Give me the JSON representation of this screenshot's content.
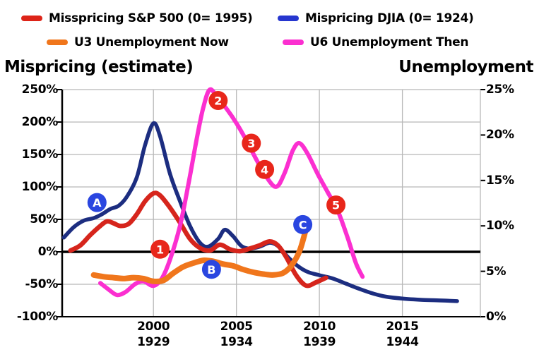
{
  "legend": {
    "items": [
      {
        "id": "sp500",
        "label": "Misspricing S&P 500 (0= 1995)",
        "color": "#dd2418"
      },
      {
        "id": "djia",
        "label": "Mispricing DJIA (0= 1924)",
        "color": "#2636cf"
      },
      {
        "id": "u3now",
        "label": "U3 Unemployment Now",
        "color": "#f0761c"
      },
      {
        "id": "u6then",
        "label": "U6 Unemployment Then",
        "color": "#fb2fd0"
      }
    ]
  },
  "titles": {
    "left_axis_title": "Mispricing (estimate)",
    "right_axis_title": "Unemployment"
  },
  "chart_data": {
    "type": "line",
    "title": "Mispricing (estimate) vs Unemployment",
    "grid": true,
    "grid_color": "#b8b8b8",
    "x_range": [
      1994.5,
      2019.7
    ],
    "left_axis": {
      "title": "Mispricing (estimate)",
      "range": [
        -100,
        250
      ],
      "ticks": [
        {
          "v": 250,
          "label": "250%"
        },
        {
          "v": 200,
          "label": "200%"
        },
        {
          "v": 150,
          "label": "150%"
        },
        {
          "v": 100,
          "label": "100%"
        },
        {
          "v": 50,
          "label": "50%"
        },
        {
          "v": 0,
          "label": "0%"
        },
        {
          "v": -50,
          "label": "-50%"
        },
        {
          "v": -100,
          "label": "-100%"
        }
      ]
    },
    "right_axis": {
      "title": "Unemployment",
      "range": [
        0,
        25
      ],
      "ticks": [
        {
          "v": 25,
          "label": "25%"
        },
        {
          "v": 20,
          "label": "20%"
        },
        {
          "v": 15,
          "label": "15%"
        },
        {
          "v": 10,
          "label": "10%"
        },
        {
          "v": 5,
          "label": "5%"
        },
        {
          "v": 0,
          "label": "0%"
        }
      ]
    },
    "x_axis": {
      "ticks": [
        {
          "year": 2000,
          "label_now": "2000",
          "label_then": "1929"
        },
        {
          "year": 2005,
          "label_now": "2005",
          "label_then": "1934"
        },
        {
          "year": 2010,
          "label_now": "2010",
          "label_then": "1939"
        },
        {
          "year": 2015,
          "label_now": "2015",
          "label_then": "1944"
        }
      ]
    },
    "series": [
      {
        "id": "djia",
        "name": "Mispricing DJIA (0= 1924)",
        "axis": "left",
        "color": "#1c2d80",
        "stroke_width": 5.5,
        "points": [
          [
            1994.6,
            22
          ],
          [
            1995.2,
            38
          ],
          [
            1995.8,
            48
          ],
          [
            1996.4,
            52
          ],
          [
            1996.9,
            58
          ],
          [
            1997.4,
            66
          ],
          [
            1997.9,
            71
          ],
          [
            1998.4,
            85
          ],
          [
            1999.0,
            115
          ],
          [
            1999.5,
            165
          ],
          [
            2000.0,
            198
          ],
          [
            2000.4,
            178
          ],
          [
            2001.0,
            120
          ],
          [
            2001.6,
            78
          ],
          [
            2002.2,
            40
          ],
          [
            2002.8,
            14
          ],
          [
            2003.3,
            8
          ],
          [
            2003.9,
            20
          ],
          [
            2004.3,
            34
          ],
          [
            2004.8,
            24
          ],
          [
            2005.3,
            9
          ],
          [
            2005.8,
            5
          ],
          [
            2006.4,
            8
          ],
          [
            2007.0,
            14
          ],
          [
            2007.5,
            9
          ],
          [
            2008.1,
            -8
          ],
          [
            2008.7,
            -22
          ],
          [
            2009.3,
            -31
          ],
          [
            2010.0,
            -36
          ],
          [
            2010.8,
            -41
          ],
          [
            2011.6,
            -49
          ],
          [
            2012.4,
            -57
          ],
          [
            2013.2,
            -64
          ],
          [
            2014.0,
            -69
          ],
          [
            2015.0,
            -72
          ],
          [
            2016.2,
            -74
          ],
          [
            2017.4,
            -75
          ],
          [
            2018.3,
            -76
          ]
        ]
      },
      {
        "id": "sp500",
        "name": "Misspricing S&P 500 (0= 1995)",
        "axis": "left",
        "color": "#d6251c",
        "stroke_width": 6.5,
        "points": [
          [
            1995.0,
            2
          ],
          [
            1995.6,
            10
          ],
          [
            1996.2,
            26
          ],
          [
            1996.8,
            40
          ],
          [
            1997.2,
            47
          ],
          [
            1997.6,
            44
          ],
          [
            1998.0,
            40
          ],
          [
            1998.5,
            43
          ],
          [
            1999.0,
            58
          ],
          [
            1999.5,
            78
          ],
          [
            2000.0,
            90
          ],
          [
            2000.4,
            87
          ],
          [
            2001.0,
            68
          ],
          [
            2001.6,
            45
          ],
          [
            2002.2,
            20
          ],
          [
            2002.8,
            6
          ],
          [
            2003.4,
            2
          ],
          [
            2004.0,
            11
          ],
          [
            2004.6,
            4
          ],
          [
            2005.2,
            1
          ],
          [
            2005.8,
            5
          ],
          [
            2006.4,
            10
          ],
          [
            2007.0,
            16
          ],
          [
            2007.5,
            10
          ],
          [
            2008.0,
            -8
          ],
          [
            2008.6,
            -36
          ],
          [
            2009.2,
            -52
          ],
          [
            2009.8,
            -47
          ],
          [
            2010.4,
            -40
          ]
        ]
      },
      {
        "id": "u6then",
        "name": "U6 Unemployment Then",
        "axis": "right",
        "color": "#fb2fd0",
        "stroke_width": 6,
        "points": [
          [
            1996.8,
            3.7
          ],
          [
            1997.3,
            3.0
          ],
          [
            1997.8,
            2.4
          ],
          [
            1998.3,
            2.7
          ],
          [
            1998.9,
            3.6
          ],
          [
            1999.4,
            3.9
          ],
          [
            2000.0,
            3.4
          ],
          [
            2000.5,
            4.2
          ],
          [
            2001.0,
            6.3
          ],
          [
            2001.6,
            10.0
          ],
          [
            2002.1,
            14.5
          ],
          [
            2002.6,
            19.5
          ],
          [
            2003.0,
            23.0
          ],
          [
            2003.4,
            25.0
          ],
          [
            2003.9,
            24.0
          ],
          [
            2004.4,
            22.9
          ],
          [
            2005.0,
            21.3
          ],
          [
            2005.6,
            19.4
          ],
          [
            2006.2,
            17.3
          ],
          [
            2006.8,
            15.4
          ],
          [
            2007.4,
            14.3
          ],
          [
            2007.9,
            15.8
          ],
          [
            2008.4,
            18.3
          ],
          [
            2008.8,
            19.1
          ],
          [
            2009.3,
            17.9
          ],
          [
            2009.9,
            15.7
          ],
          [
            2010.5,
            13.7
          ],
          [
            2011.1,
            11.7
          ],
          [
            2011.7,
            8.7
          ],
          [
            2012.2,
            5.9
          ],
          [
            2012.6,
            4.4
          ]
        ]
      },
      {
        "id": "u3now",
        "name": "U3 Unemployment Now",
        "axis": "right",
        "color": "#f0761c",
        "stroke_width": 8,
        "points": [
          [
            1996.4,
            4.6
          ],
          [
            1997.0,
            4.4
          ],
          [
            1997.6,
            4.3
          ],
          [
            1998.2,
            4.2
          ],
          [
            1998.8,
            4.3
          ],
          [
            1999.4,
            4.2
          ],
          [
            2000.0,
            3.9
          ],
          [
            2000.6,
            4.0
          ],
          [
            2001.2,
            4.8
          ],
          [
            2001.8,
            5.5
          ],
          [
            2002.4,
            5.9
          ],
          [
            2003.0,
            6.2
          ],
          [
            2003.6,
            6.1
          ],
          [
            2004.2,
            5.8
          ],
          [
            2004.8,
            5.6
          ],
          [
            2005.4,
            5.2
          ],
          [
            2006.0,
            4.9
          ],
          [
            2006.6,
            4.7
          ],
          [
            2007.2,
            4.6
          ],
          [
            2007.8,
            4.8
          ],
          [
            2008.3,
            5.6
          ],
          [
            2008.8,
            7.2
          ],
          [
            2009.2,
            9.7
          ]
        ]
      }
    ],
    "annotations": [
      {
        "label": "A",
        "x": 1996.6,
        "y": 76,
        "axis": "left",
        "color": "#2a46e0"
      },
      {
        "label": "B",
        "x": 2003.5,
        "y": -27,
        "axis": "left",
        "color": "#2a46e0"
      },
      {
        "label": "C",
        "x": 2009.0,
        "y": 42,
        "axis": "left",
        "color": "#2a46e0"
      },
      {
        "label": "1",
        "x": 2000.4,
        "y": 4,
        "axis": "left",
        "color": "#e8261a"
      },
      {
        "label": "2",
        "x": 2003.9,
        "y": 23.8,
        "axis": "right",
        "color": "#e8261a"
      },
      {
        "label": "3",
        "x": 2005.9,
        "y": 19.1,
        "axis": "right",
        "color": "#e8261a"
      },
      {
        "label": "4",
        "x": 2006.7,
        "y": 16.2,
        "axis": "right",
        "color": "#e8261a"
      },
      {
        "label": "5",
        "x": 2011.0,
        "y": 12.3,
        "axis": "right",
        "color": "#e8261a"
      }
    ]
  }
}
